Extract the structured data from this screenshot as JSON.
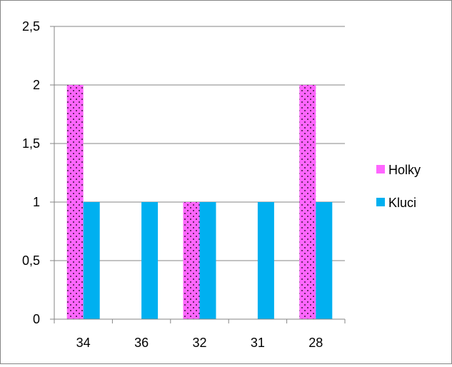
{
  "chart_data": {
    "type": "bar",
    "categories": [
      "34",
      "36",
      "32",
      "31",
      "28"
    ],
    "series": [
      {
        "name": "Holky",
        "values": [
          2,
          0,
          1,
          0,
          2
        ],
        "color": "#FF66FF",
        "pattern": "dotted"
      },
      {
        "name": "Kluci",
        "values": [
          1,
          1,
          1,
          1,
          1
        ],
        "color": "#00B0F0"
      }
    ],
    "ylim": [
      0,
      2.5
    ],
    "yticks": [
      "0",
      "0,5",
      "1",
      "1,5",
      "2",
      "2,5"
    ],
    "grid": true,
    "legend": "right"
  }
}
